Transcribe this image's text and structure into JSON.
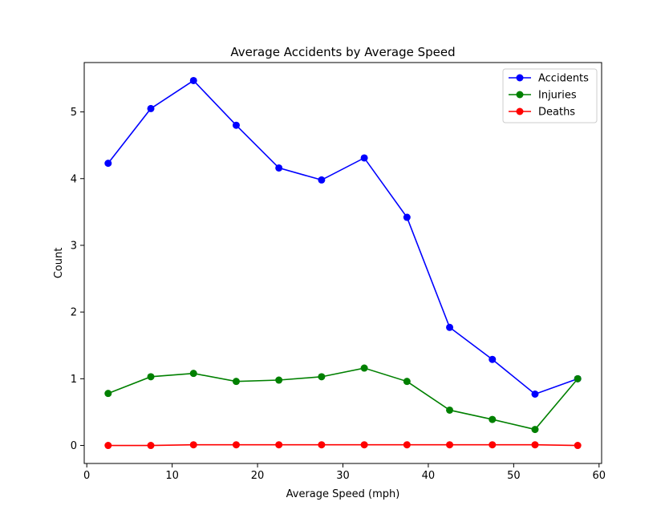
{
  "chart_data": {
    "type": "line",
    "title": "Average Accidents by Average Speed",
    "xlabel": "Average Speed (mph)",
    "ylabel": "Count",
    "xlim": [
      -0.3,
      60.3
    ],
    "ylim": [
      -0.27,
      5.74
    ],
    "xticks": [
      0,
      10,
      20,
      30,
      40,
      50,
      60
    ],
    "yticks": [
      0,
      1,
      2,
      3,
      4,
      5
    ],
    "grid": false,
    "legend_position": "top-right",
    "x": [
      2.5,
      7.5,
      12.5,
      17.5,
      22.5,
      27.5,
      32.5,
      37.5,
      42.5,
      47.5,
      52.5,
      57.5
    ],
    "series": [
      {
        "name": "Accidents",
        "color": "#0000ff",
        "marker": "circle",
        "values": [
          4.23,
          5.05,
          5.47,
          4.8,
          4.16,
          3.98,
          4.31,
          3.42,
          1.77,
          1.29,
          0.77,
          1.0
        ]
      },
      {
        "name": "Injuries",
        "color": "#008000",
        "marker": "circle",
        "values": [
          0.78,
          1.03,
          1.08,
          0.96,
          0.98,
          1.03,
          1.16,
          0.96,
          0.53,
          0.39,
          0.24,
          1.0
        ]
      },
      {
        "name": "Deaths",
        "color": "#ff0000",
        "marker": "circle",
        "values": [
          0.0,
          0.0,
          0.01,
          0.01,
          0.01,
          0.01,
          0.01,
          0.01,
          0.01,
          0.01,
          0.01,
          0.0
        ]
      }
    ]
  }
}
